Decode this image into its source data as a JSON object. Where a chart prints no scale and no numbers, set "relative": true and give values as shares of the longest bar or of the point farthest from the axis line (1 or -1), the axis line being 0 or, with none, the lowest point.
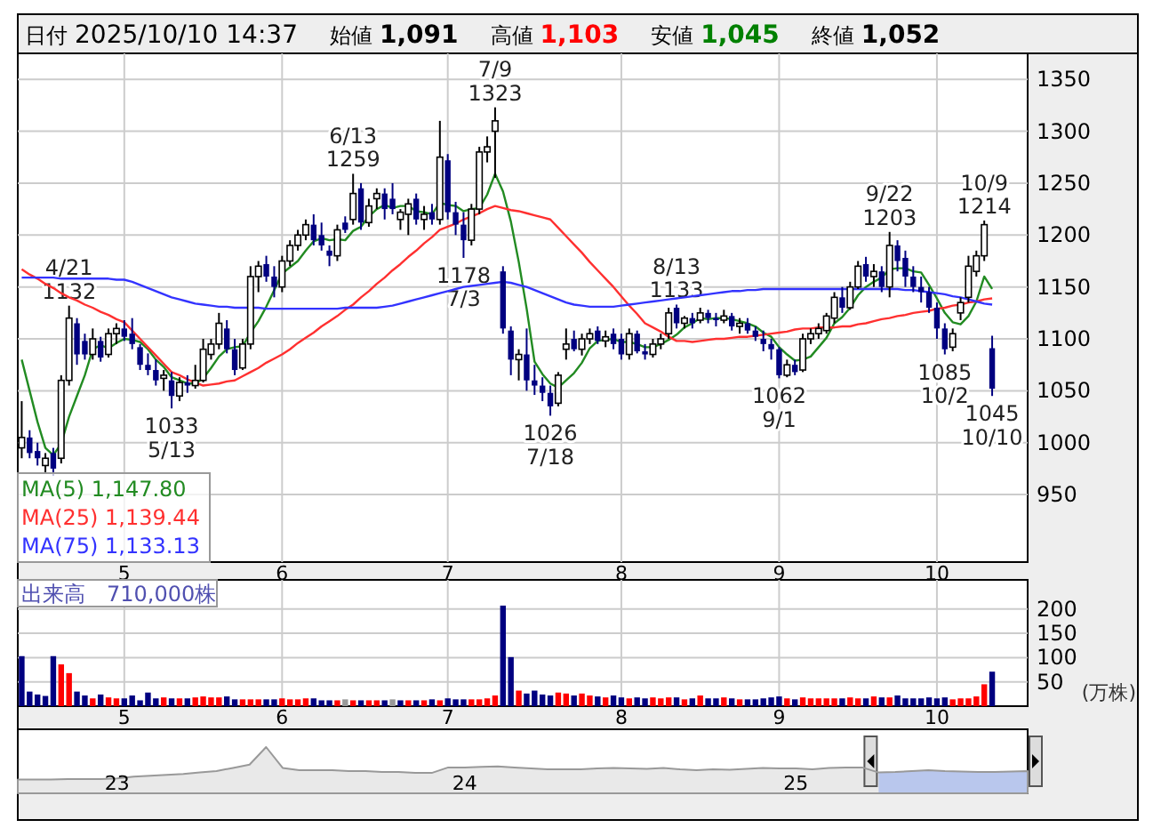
{
  "chart_data": [
    {
      "type": "other",
      "annotations": [
        "日付",
        "2025/10/10 14:37",
        "始値",
        "1,091",
        "高値",
        "1,103",
        "安値",
        "1,045",
        "終値",
        "1,052"
      ],
      "colors": [
        "#000000",
        "#000000",
        "#000000",
        "#000000",
        "#000000",
        "#ff0000",
        "#000000",
        "#008000",
        "#000000",
        "#000000"
      ]
    },
    {
      "type": "candlestick",
      "grid": true,
      "legend": "bottom left",
      "ylim": [
        885,
        1375
      ],
      "yticks": [
        950,
        1000,
        1050,
        1100,
        1150,
        1200,
        1250,
        1300,
        1350
      ],
      "categories": [
        null,
        null,
        null,
        null,
        null,
        null,
        null,
        null,
        null,
        null,
        null,
        null,
        null,
        "5",
        null,
        null,
        null,
        null,
        null,
        null,
        null,
        null,
        null,
        null,
        null,
        null,
        null,
        null,
        null,
        null,
        null,
        null,
        null,
        "6",
        null,
        null,
        null,
        null,
        null,
        null,
        null,
        null,
        null,
        null,
        null,
        null,
        null,
        null,
        null,
        null,
        null,
        null,
        null,
        null,
        "7",
        null,
        null,
        null,
        null,
        null,
        null,
        null,
        null,
        null,
        null,
        null,
        null,
        null,
        null,
        null,
        null,
        null,
        null,
        null,
        null,
        null,
        "8",
        null,
        null,
        null,
        null,
        null,
        null,
        null,
        null,
        null,
        null,
        null,
        null,
        null,
        null,
        null,
        null,
        null,
        null,
        null,
        "9",
        null,
        null,
        null,
        null,
        null,
        null,
        null,
        null,
        null,
        null,
        null,
        null,
        null,
        null,
        null,
        null,
        null,
        null,
        null,
        "10",
        null,
        null,
        null,
        null,
        null,
        null,
        null
      ],
      "ohlc": [
        [
          995,
          1040,
          985,
          1005
        ],
        [
          1005,
          1012,
          985,
          990
        ],
        [
          992,
          1000,
          978,
          985
        ],
        [
          978,
          990,
          970,
          985
        ],
        [
          990,
          995,
          968,
          975
        ],
        [
          985,
          1065,
          980,
          1060
        ],
        [
          1060,
          1132,
          1055,
          1120
        ],
        [
          1115,
          1120,
          1075,
          1085
        ],
        [
          1098,
          1105,
          1080,
          1085
        ],
        [
          1085,
          1110,
          1080,
          1100
        ],
        [
          1098,
          1102,
          1078,
          1082
        ],
        [
          1085,
          1110,
          1082,
          1105
        ],
        [
          1105,
          1115,
          1095,
          1110
        ],
        [
          1110,
          1118,
          1098,
          1102
        ],
        [
          1105,
          1120,
          1090,
          1095
        ],
        [
          1092,
          1095,
          1070,
          1075
        ],
        [
          1075,
          1086,
          1065,
          1070
        ],
        [
          1070,
          1080,
          1055,
          1060
        ],
        [
          1062,
          1070,
          1050,
          1065
        ],
        [
          1060,
          1068,
          1033,
          1045
        ],
        [
          1045,
          1063,
          1040,
          1058
        ],
        [
          1058,
          1065,
          1048,
          1055
        ],
        [
          1055,
          1075,
          1052,
          1060
        ],
        [
          1060,
          1100,
          1058,
          1090
        ],
        [
          1085,
          1100,
          1080,
          1095
        ],
        [
          1095,
          1125,
          1090,
          1115
        ],
        [
          1110,
          1118,
          1086,
          1090
        ],
        [
          1090,
          1100,
          1065,
          1070
        ],
        [
          1072,
          1100,
          1070,
          1095
        ],
        [
          1095,
          1170,
          1090,
          1160
        ],
        [
          1160,
          1175,
          1145,
          1170
        ],
        [
          1172,
          1180,
          1155,
          1160
        ],
        [
          1160,
          1170,
          1140,
          1150
        ],
        [
          1150,
          1180,
          1145,
          1175
        ],
        [
          1175,
          1195,
          1170,
          1190
        ],
        [
          1190,
          1205,
          1185,
          1200
        ],
        [
          1200,
          1215,
          1195,
          1210
        ],
        [
          1210,
          1220,
          1190,
          1195
        ],
        [
          1200,
          1212,
          1185,
          1190
        ],
        [
          1185,
          1190,
          1170,
          1180
        ],
        [
          1180,
          1210,
          1175,
          1205
        ],
        [
          1212,
          1218,
          1202,
          1205
        ],
        [
          1215,
          1259,
          1210,
          1240
        ],
        [
          1245,
          1250,
          1205,
          1212
        ],
        [
          1212,
          1235,
          1208,
          1228
        ],
        [
          1235,
          1245,
          1225,
          1240
        ],
        [
          1240,
          1245,
          1215,
          1225
        ],
        [
          1235,
          1250,
          1220,
          1225
        ],
        [
          1215,
          1225,
          1205,
          1222
        ],
        [
          1220,
          1235,
          1200,
          1230
        ],
        [
          1235,
          1240,
          1210,
          1215
        ],
        [
          1215,
          1228,
          1205,
          1220
        ],
        [
          1222,
          1230,
          1210,
          1215
        ],
        [
          1215,
          1310,
          1210,
          1275
        ],
        [
          1272,
          1278,
          1215,
          1222
        ],
        [
          1222,
          1232,
          1200,
          1210
        ],
        [
          1210,
          1222,
          1178,
          1195
        ],
        [
          1195,
          1230,
          1190,
          1225
        ],
        [
          1225,
          1285,
          1220,
          1280
        ],
        [
          1280,
          1295,
          1270,
          1285
        ],
        [
          1300,
          1323,
          1255,
          1310
        ],
        [
          1165,
          1170,
          1105,
          1110
        ],
        [
          1108,
          1112,
          1065,
          1080
        ],
        [
          1080,
          1090,
          1060,
          1085
        ],
        [
          1085,
          1110,
          1050,
          1060
        ],
        [
          1060,
          1075,
          1046,
          1055
        ],
        [
          1055,
          1063,
          1040,
          1048
        ],
        [
          1048,
          1055,
          1026,
          1035
        ],
        [
          1038,
          1068,
          1035,
          1065
        ],
        [
          1090,
          1110,
          1080,
          1095
        ],
        [
          1100,
          1108,
          1088,
          1090
        ],
        [
          1090,
          1105,
          1084,
          1100
        ],
        [
          1100,
          1110,
          1095,
          1105
        ],
        [
          1108,
          1112,
          1095,
          1098
        ],
        [
          1098,
          1108,
          1092,
          1102
        ],
        [
          1105,
          1110,
          1090,
          1095
        ],
        [
          1100,
          1105,
          1080,
          1085
        ],
        [
          1085,
          1110,
          1080,
          1105
        ],
        [
          1105,
          1108,
          1086,
          1088
        ],
        [
          1088,
          1095,
          1080,
          1085
        ],
        [
          1085,
          1100,
          1082,
          1095
        ],
        [
          1095,
          1105,
          1090,
          1100
        ],
        [
          1105,
          1130,
          1100,
          1125
        ],
        [
          1130,
          1133,
          1110,
          1115
        ],
        [
          1115,
          1122,
          1110,
          1120
        ],
        [
          1120,
          1125,
          1110,
          1115
        ],
        [
          1118,
          1130,
          1115,
          1125
        ],
        [
          1125,
          1128,
          1115,
          1120
        ],
        [
          1120,
          1125,
          1112,
          1118
        ],
        [
          1118,
          1128,
          1115,
          1122
        ],
        [
          1122,
          1125,
          1108,
          1112
        ],
        [
          1112,
          1120,
          1105,
          1115
        ],
        [
          1115,
          1120,
          1105,
          1108
        ],
        [
          1108,
          1112,
          1098,
          1102
        ],
        [
          1100,
          1108,
          1088,
          1095
        ],
        [
          1095,
          1100,
          1080,
          1090
        ],
        [
          1090,
          1092,
          1062,
          1065
        ],
        [
          1065,
          1080,
          1063,
          1075
        ],
        [
          1075,
          1080,
          1065,
          1068
        ],
        [
          1070,
          1105,
          1068,
          1100
        ],
        [
          1100,
          1110,
          1095,
          1105
        ],
        [
          1105,
          1115,
          1100,
          1110
        ],
        [
          1108,
          1125,
          1105,
          1122
        ],
        [
          1120,
          1145,
          1115,
          1140
        ],
        [
          1140,
          1150,
          1125,
          1130
        ],
        [
          1130,
          1155,
          1128,
          1150
        ],
        [
          1150,
          1175,
          1148,
          1170
        ],
        [
          1172,
          1179,
          1155,
          1160
        ],
        [
          1160,
          1172,
          1150,
          1165
        ],
        [
          1165,
          1170,
          1145,
          1150
        ],
        [
          1150,
          1203,
          1140,
          1190
        ],
        [
          1190,
          1195,
          1165,
          1175
        ],
        [
          1178,
          1185,
          1150,
          1160
        ],
        [
          1160,
          1170,
          1145,
          1150
        ],
        [
          1150,
          1160,
          1135,
          1145
        ],
        [
          1145,
          1150,
          1125,
          1130
        ],
        [
          1130,
          1135,
          1100,
          1110
        ],
        [
          1110,
          1115,
          1085,
          1090
        ],
        [
          1092,
          1110,
          1088,
          1105
        ],
        [
          1125,
          1140,
          1118,
          1135
        ],
        [
          1140,
          1180,
          1135,
          1170
        ],
        [
          1165,
          1185,
          1160,
          1180
        ],
        [
          1180,
          1214,
          1175,
          1210
        ],
        [
          1091,
          1103,
          1045,
          1052
        ]
      ],
      "series": [
        {
          "type": "line",
          "name": "MA(5)  1,147.80",
          "color": "#228b22",
          "values": [
            1080,
            1050,
            1020,
            995,
            988,
            999,
            1025,
            1045,
            1065,
            1090,
            1094,
            1091,
            1096,
            1100,
            1099,
            1097,
            1090,
            1080,
            1073,
            1063,
            1060,
            1057,
            1057,
            1062,
            1072,
            1083,
            1090,
            1092,
            1093,
            1106,
            1117,
            1131,
            1147,
            1163,
            1169,
            1175,
            1185,
            1194,
            1197,
            1195,
            1196,
            1195,
            1204,
            1208,
            1218,
            1225,
            1229,
            1226,
            1228,
            1228,
            1223,
            1222,
            1220,
            1231,
            1229,
            1228,
            1223,
            1225,
            1226,
            1239,
            1259,
            1242,
            1213,
            1174,
            1129,
            1078,
            1066,
            1057,
            1053,
            1060,
            1067,
            1077,
            1091,
            1098,
            1099,
            1100,
            1097,
            1097,
            1095,
            1092,
            1092,
            1095,
            1099,
            1104,
            1111,
            1115,
            1120,
            1119,
            1120,
            1120,
            1119,
            1117,
            1115,
            1112,
            1106,
            1102,
            1092,
            1085,
            1079,
            1080,
            1083,
            1092,
            1101,
            1115,
            1121,
            1130,
            1142,
            1150,
            1155,
            1159,
            1167,
            1168,
            1168,
            1165,
            1164,
            1152,
            1139,
            1125,
            1116,
            1114,
            1122,
            1136,
            1160,
            1148
          ]
        },
        {
          "type": "line",
          "name": "MA(25)  1,139.44",
          "color": "#ff3030",
          "values": [
            1167,
            1162,
            1158,
            1153,
            1149,
            1144,
            1140,
            1137,
            1133,
            1130,
            1126,
            1123,
            1119,
            1116,
            1108,
            1100,
            1092,
            1084,
            1076,
            1068,
            1065,
            1061,
            1058,
            1055,
            1056,
            1057,
            1059,
            1060,
            1064,
            1068,
            1072,
            1077,
            1081,
            1085,
            1090,
            1096,
            1101,
            1106,
            1112,
            1117,
            1122,
            1128,
            1133,
            1140,
            1146,
            1153,
            1159,
            1166,
            1172,
            1179,
            1185,
            1192,
            1198,
            1205,
            1208,
            1211,
            1215,
            1218,
            1221,
            1225,
            1228,
            1226,
            1224,
            1223,
            1221,
            1219,
            1217,
            1215,
            1207,
            1199,
            1191,
            1183,
            1174,
            1166,
            1158,
            1150,
            1141,
            1132,
            1124,
            1115,
            1111,
            1107,
            1102,
            1098,
            1098,
            1097,
            1098,
            1099,
            1100,
            1100,
            1101,
            1102,
            1102,
            1103,
            1104,
            1105,
            1106,
            1107,
            1109,
            1110,
            1110,
            1111,
            1111,
            1111,
            1112,
            1112,
            1114,
            1115,
            1117,
            1119,
            1120,
            1122,
            1123,
            1125,
            1126,
            1127,
            1129,
            1130,
            1132,
            1133,
            1135,
            1136,
            1138,
            1139
          ]
        },
        {
          "type": "line",
          "name": "MA(75)  1,133.13",
          "color": "#3333ff",
          "values": [
            1159,
            1159,
            1159,
            1159,
            1159,
            1158,
            1158,
            1158,
            1158,
            1158,
            1158,
            1158,
            1157,
            1157,
            1155,
            1152,
            1149,
            1146,
            1143,
            1140,
            1138,
            1136,
            1134,
            1133,
            1132,
            1131,
            1131,
            1130,
            1130,
            1130,
            1130,
            1129,
            1129,
            1129,
            1129,
            1129,
            1129,
            1129,
            1129,
            1129,
            1129,
            1130,
            1130,
            1130,
            1130,
            1130,
            1131,
            1132,
            1134,
            1136,
            1138,
            1140,
            1142,
            1144,
            1146,
            1148,
            1150,
            1151,
            1152,
            1153,
            1154,
            1155,
            1154,
            1152,
            1150,
            1147,
            1144,
            1141,
            1138,
            1135,
            1133,
            1132,
            1131,
            1131,
            1131,
            1131,
            1132,
            1133,
            1134,
            1135,
            1136,
            1137,
            1138,
            1139,
            1140,
            1141,
            1142,
            1143,
            1144,
            1145,
            1146,
            1146,
            1147,
            1147,
            1148,
            1148,
            1148,
            1148,
            1148,
            1148,
            1148,
            1148,
            1148,
            1148,
            1148,
            1148,
            1148,
            1148,
            1148,
            1148,
            1148,
            1148,
            1147,
            1147,
            1146,
            1145,
            1144,
            1143,
            1141,
            1140,
            1138,
            1136,
            1134,
            1133
          ]
        }
      ],
      "annotations": [
        {
          "text": "4/21\n1132",
          "y": 1132
        },
        {
          "text": "1033\n5/13",
          "y": 1033
        },
        {
          "text": "6/13\n1259",
          "y": 1259
        },
        {
          "text": "7/9\n1323",
          "y": 1323
        },
        {
          "text": "1178\n7/3",
          "y": 1178
        },
        {
          "text": "1026\n7/18",
          "y": 1026
        },
        {
          "text": "8/13\n1133",
          "y": 1133
        },
        {
          "text": "1062\n9/1",
          "y": 1062
        },
        {
          "text": "9/22\n1203",
          "y": 1203
        },
        {
          "text": "1085\n10/2",
          "y": 1085
        },
        {
          "text": "10/9\n1214",
          "y": 1214
        },
        {
          "text": "1045\n10/10",
          "y": 1045
        }
      ]
    },
    {
      "type": "bar",
      "grid": true,
      "ylim": [
        0,
        260
      ],
      "yticks": [
        50,
        100,
        150,
        200
      ],
      "ylabel": "(万株)",
      "annotations": [
        "出来高　710,000株"
      ],
      "categories": [
        null,
        null,
        null,
        null,
        null,
        null,
        null,
        null,
        null,
        null,
        null,
        null,
        null,
        "5",
        null,
        null,
        null,
        null,
        null,
        null,
        null,
        null,
        null,
        null,
        null,
        null,
        null,
        null,
        null,
        null,
        null,
        null,
        null,
        "6",
        null,
        null,
        null,
        null,
        null,
        null,
        null,
        null,
        null,
        null,
        null,
        null,
        null,
        null,
        null,
        null,
        null,
        null,
        null,
        null,
        "7",
        null,
        null,
        null,
        null,
        null,
        null,
        null,
        null,
        null,
        null,
        null,
        null,
        null,
        null,
        null,
        null,
        null,
        null,
        null,
        null,
        null,
        "8",
        null,
        null,
        null,
        null,
        null,
        null,
        null,
        null,
        null,
        null,
        null,
        null,
        null,
        null,
        null,
        null,
        null,
        null,
        null,
        "9",
        null,
        null,
        null,
        null,
        null,
        null,
        null,
        null,
        null,
        null,
        null,
        null,
        null,
        null,
        null,
        null,
        null,
        null,
        null,
        "10",
        null,
        null,
        null,
        null,
        null,
        null,
        null
      ],
      "values": [
        103,
        30,
        24,
        21,
        103,
        86,
        68,
        30,
        22,
        16,
        24,
        18,
        16,
        16,
        22,
        12,
        28,
        16,
        18,
        16,
        16,
        16,
        18,
        20,
        18,
        18,
        20,
        14,
        14,
        14,
        14,
        14,
        14,
        16,
        14,
        14,
        16,
        16,
        12,
        12,
        12,
        14,
        12,
        12,
        12,
        12,
        12,
        14,
        12,
        12,
        12,
        12,
        14,
        12,
        16,
        14,
        14,
        14,
        14,
        16,
        22,
        207,
        101,
        32,
        26,
        32,
        24,
        22,
        28,
        26,
        22,
        26,
        22,
        20,
        18,
        22,
        18,
        16,
        18,
        16,
        18,
        16,
        18,
        18,
        14,
        16,
        22,
        16,
        16,
        18,
        16,
        14,
        14,
        14,
        16,
        18,
        20,
        16,
        14,
        18,
        16,
        16,
        16,
        16,
        16,
        18,
        16,
        16,
        20,
        18,
        18,
        22,
        16,
        16,
        16,
        18,
        16,
        18,
        14,
        16,
        16,
        20,
        45,
        71
      ],
      "colors": [
        "#000080",
        "#000080",
        "#000080",
        "#000080",
        "#000080",
        "#ff0000",
        "#ff0000",
        "#000080",
        "#000080",
        "#ff0000",
        "#000080",
        "#ff0000",
        "#ff0000",
        "#000080",
        "#000080",
        "#000080",
        "#000080",
        "#000080",
        "#ff0000",
        "#000080",
        "#ff0000",
        "#000080",
        "#ff0000",
        "#ff0000",
        "#ff0000",
        "#ff0000",
        "#000080",
        "#000080",
        "#ff0000",
        "#ff0000",
        "#ff0000",
        "#000080",
        "#000080",
        "#ff0000",
        "#ff0000",
        "#ff0000",
        "#ff0000",
        "#000080",
        "#000080",
        "#000080",
        "#ff0000",
        "#999999",
        "#ff0000",
        "#000080",
        "#ff0000",
        "#ff0000",
        "#000080",
        "#999999",
        "#000080",
        "#ff0000",
        "#000080",
        "#ff0000",
        "#000080",
        "#ff0000",
        "#000080",
        "#000080",
        "#000080",
        "#ff0000",
        "#ff0000",
        "#ff0000",
        "#ff0000",
        "#000080",
        "#000080",
        "#ff0000",
        "#000080",
        "#000080",
        "#000080",
        "#000080",
        "#ff0000",
        "#ff0000",
        "#000080",
        "#ff0000",
        "#ff0000",
        "#000080",
        "#ff0000",
        "#000080",
        "#000080",
        "#ff0000",
        "#000080",
        "#000080",
        "#ff0000",
        "#ff0000",
        "#ff0000",
        "#000080",
        "#ff0000",
        "#000080",
        "#ff0000",
        "#000080",
        "#000080",
        "#ff0000",
        "#000080",
        "#ff0000",
        "#000080",
        "#000080",
        "#000080",
        "#000080",
        "#000080",
        "#ff0000",
        "#000080",
        "#ff0000",
        "#ff0000",
        "#ff0000",
        "#ff0000",
        "#ff0000",
        "#000080",
        "#ff0000",
        "#ff0000",
        "#000080",
        "#ff0000",
        "#000080",
        "#ff0000",
        "#000080",
        "#000080",
        "#000080",
        "#000080",
        "#000080",
        "#000080",
        "#000080",
        "#ff0000",
        "#ff0000",
        "#ff0000",
        "#ff0000",
        "#ff0000",
        "#000080"
      ]
    },
    {
      "type": "area",
      "relative": true,
      "categories": [
        null,
        null,
        null,
        null,
        null,
        null,
        "23",
        null,
        null,
        null,
        null,
        null,
        null,
        null,
        null,
        null,
        null,
        null,
        null,
        null,
        null,
        null,
        null,
        null,
        null,
        null,
        null,
        "24",
        null,
        null,
        null,
        null,
        null,
        null,
        null,
        null,
        null,
        null,
        null,
        null,
        null,
        null,
        null,
        null,
        null,
        null,
        null,
        "25",
        null,
        null,
        null,
        null,
        null,
        null,
        null,
        null,
        null,
        null,
        null,
        null,
        null,
        null
      ],
      "series": [
        {
          "color": "#999999",
          "values": [
            0.3,
            0.3,
            0.3,
            0.31,
            0.31,
            0.31,
            0.32,
            0.36,
            0.38,
            0.4,
            0.42,
            0.45,
            0.48,
            0.55,
            0.62,
            1.0,
            0.55,
            0.5,
            0.5,
            0.5,
            0.48,
            0.48,
            0.46,
            0.46,
            0.44,
            0.44,
            0.56,
            0.56,
            0.57,
            0.58,
            0.56,
            0.54,
            0.52,
            0.52,
            0.52,
            0.54,
            0.55,
            0.54,
            0.53,
            0.55,
            0.52,
            0.5,
            0.52,
            0.51,
            0.53,
            0.55,
            0.54,
            0.54,
            0.52,
            0.55,
            0.56,
            0.56,
            0.45,
            0.46,
            0.48,
            0.5,
            0.48,
            0.47,
            0.46,
            0.46,
            0.47,
            0.48
          ]
        }
      ]
    }
  ]
}
